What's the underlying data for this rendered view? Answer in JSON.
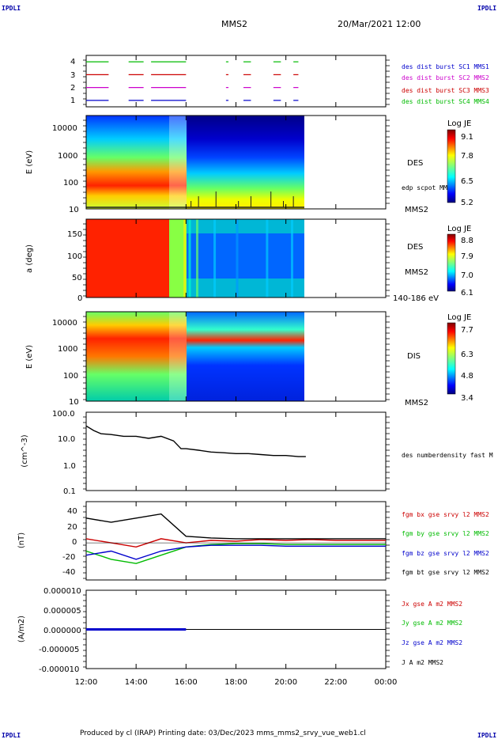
{
  "header": {
    "left_tag": "IPDLI",
    "right_tag": "IPDLI",
    "title": "MMS2",
    "datetime": "20/Mar/2021 12:00"
  },
  "footer": {
    "text": "Produced by cl (IRAP)   Printing date: 03/Dec/2023   mms_mms2_srvy_vue_web1.cl",
    "left_tag": "IPDLI",
    "right_tag": "IPDLI"
  },
  "time_axis": {
    "ticks": [
      "12:00",
      "14:00",
      "16:00",
      "18:00",
      "20:00",
      "22:00",
      "00:00"
    ],
    "range_hours": [
      12,
      24
    ]
  },
  "chart_data": [
    {
      "type": "line",
      "id": "burst",
      "title": "",
      "yticks": [
        "1",
        "2",
        "3",
        "4"
      ],
      "ylim": [
        0.5,
        4.5
      ],
      "series": [
        {
          "name": "des dist burst SC1 MMS1",
          "level": 1,
          "color": "#0000cc"
        },
        {
          "name": "des dist burst SC2 MMS2",
          "level": 2,
          "color": "#cc00cc"
        },
        {
          "name": "des dist burst SC3 MMS3",
          "level": 3,
          "color": "#cc0000"
        },
        {
          "name": "des dist burst SC4 MMS4",
          "level": 4,
          "color": "#00bb00"
        }
      ],
      "intervals_hours": [
        [
          12.0,
          12.9
        ],
        [
          13.7,
          14.3
        ],
        [
          14.6,
          16.0
        ],
        [
          17.6,
          17.7
        ],
        [
          18.3,
          18.6
        ],
        [
          19.5,
          19.8
        ],
        [
          20.3,
          20.5
        ]
      ]
    },
    {
      "type": "heatmap",
      "id": "des_energy",
      "ylabel": "E (eV)",
      "yscale": "log",
      "ylim": [
        10,
        30000
      ],
      "yticks": [
        "10",
        "100",
        "1000",
        "10000"
      ],
      "label": "DES",
      "overlay_label": "edp scpot MMS2",
      "spacecraft": "MMS2",
      "colorbar": {
        "title": "Log JE",
        "ticks": [
          "9.1",
          "7.8",
          "6.5",
          "5.2"
        ],
        "range": [
          5.2,
          9.1
        ]
      },
      "data_end_hours": 20.7
    },
    {
      "type": "heatmap",
      "id": "des_pitch",
      "ylabel": "a (deg)",
      "ylim": [
        0,
        180
      ],
      "yticks": [
        "0",
        "50",
        "100",
        "150"
      ],
      "label": "DES",
      "spacecraft": "MMS2",
      "energy_band": "140-186 eV",
      "colorbar": {
        "title": "Log JE",
        "ticks": [
          "8.8",
          "7.9",
          "7.0",
          "6.1"
        ],
        "range": [
          6.1,
          8.8
        ]
      },
      "data_end_hours": 20.7
    },
    {
      "type": "heatmap",
      "id": "dis_energy",
      "ylabel": "E (eV)",
      "yscale": "log",
      "ylim": [
        10,
        30000
      ],
      "yticks": [
        "10",
        "100",
        "1000",
        "10000"
      ],
      "label": "DIS",
      "spacecraft": "MMS2",
      "colorbar": {
        "title": "Log JE",
        "ticks": [
          "7.7",
          "6.3",
          "4.8",
          "3.4"
        ],
        "range": [
          3.4,
          7.7
        ]
      },
      "data_end_hours": 20.7
    },
    {
      "type": "line",
      "id": "density",
      "ylabel": "(cm^-3)",
      "yscale": "log",
      "ylim": [
        0.1,
        100
      ],
      "yticks": [
        "0.1",
        "1.0",
        "10.0",
        "100.0"
      ],
      "series": [
        {
          "name": "des numberdensity fast M",
          "color": "#000000",
          "x": [
            12.0,
            12.3,
            12.6,
            13.0,
            13.5,
            14.0,
            14.5,
            15.0,
            15.5,
            15.8,
            16.0,
            16.5,
            17.0,
            17.5,
            18.0,
            18.5,
            19.0,
            19.5,
            20.0,
            20.5,
            20.8
          ],
          "y": [
            30,
            20,
            15,
            14,
            12,
            12,
            10,
            12,
            8,
            4,
            4,
            3.5,
            3,
            2.8,
            2.6,
            2.6,
            2.4,
            2.2,
            2.2,
            2.0,
            2.0
          ]
        }
      ]
    },
    {
      "type": "line",
      "id": "bfield",
      "ylabel": "(nT)",
      "ylim": [
        -45,
        50
      ],
      "yticks": [
        "-40",
        "-20",
        "0",
        "20",
        "40"
      ],
      "series": [
        {
          "name": "fgm bx gse srvy l2 MMS2",
          "color": "#cc0000",
          "x": [
            12,
            13,
            14,
            15,
            16,
            17,
            18,
            19,
            20,
            21,
            22,
            23,
            24
          ],
          "y": [
            5,
            0,
            -5,
            5,
            0,
            3,
            2,
            4,
            3,
            4,
            3,
            3,
            3
          ]
        },
        {
          "name": "fgm by gse srvy l2 MMS2",
          "color": "#00bb00",
          "x": [
            12,
            13,
            14,
            15,
            16,
            17,
            18,
            19,
            20,
            21,
            22,
            23,
            24
          ],
          "y": [
            -10,
            -20,
            -25,
            -15,
            -5,
            -2,
            -1,
            -1,
            -2,
            -2,
            -2,
            -2,
            -2
          ]
        },
        {
          "name": "fgm bz gse srvy l2 MMS2",
          "color": "#0000cc",
          "x": [
            12,
            13,
            14,
            15,
            16,
            17,
            18,
            19,
            20,
            21,
            22,
            23,
            24
          ],
          "y": [
            -15,
            -10,
            -20,
            -10,
            -5,
            -3,
            -3,
            -3,
            -4,
            -4,
            -4,
            -4,
            -4
          ]
        },
        {
          "name": "fgm bt gse srvy l2 MMS2",
          "color": "#000000",
          "x": [
            12,
            13,
            14,
            15,
            16,
            17,
            18,
            19,
            20,
            21,
            22,
            23,
            24
          ],
          "y": [
            30,
            25,
            30,
            35,
            8,
            6,
            5,
            5,
            5,
            5,
            5,
            5,
            5
          ]
        }
      ]
    },
    {
      "type": "line",
      "id": "current",
      "ylabel": "(A/m2)",
      "ylim": [
        -1e-05,
        1e-05
      ],
      "yticks": [
        "-0.000010",
        "-0.000005",
        "0.000000",
        "0.000005",
        "0.000010"
      ],
      "series": [
        {
          "name": "Jx gse A m2 MMS2",
          "color": "#cc0000"
        },
        {
          "name": "Jy gse A m2 MMS2",
          "color": "#00bb00"
        },
        {
          "name": "Jz gse A m2 MMS2",
          "color": "#0000cc"
        },
        {
          "name": "J A m2 MMS2",
          "color": "#000000"
        }
      ],
      "x": [
        12,
        13,
        14,
        15,
        16,
        17,
        18,
        19,
        20,
        21,
        22,
        23,
        24
      ],
      "y": [
        0,
        0,
        0,
        0,
        0,
        0,
        0,
        0,
        0,
        0,
        0,
        0,
        0
      ]
    }
  ]
}
